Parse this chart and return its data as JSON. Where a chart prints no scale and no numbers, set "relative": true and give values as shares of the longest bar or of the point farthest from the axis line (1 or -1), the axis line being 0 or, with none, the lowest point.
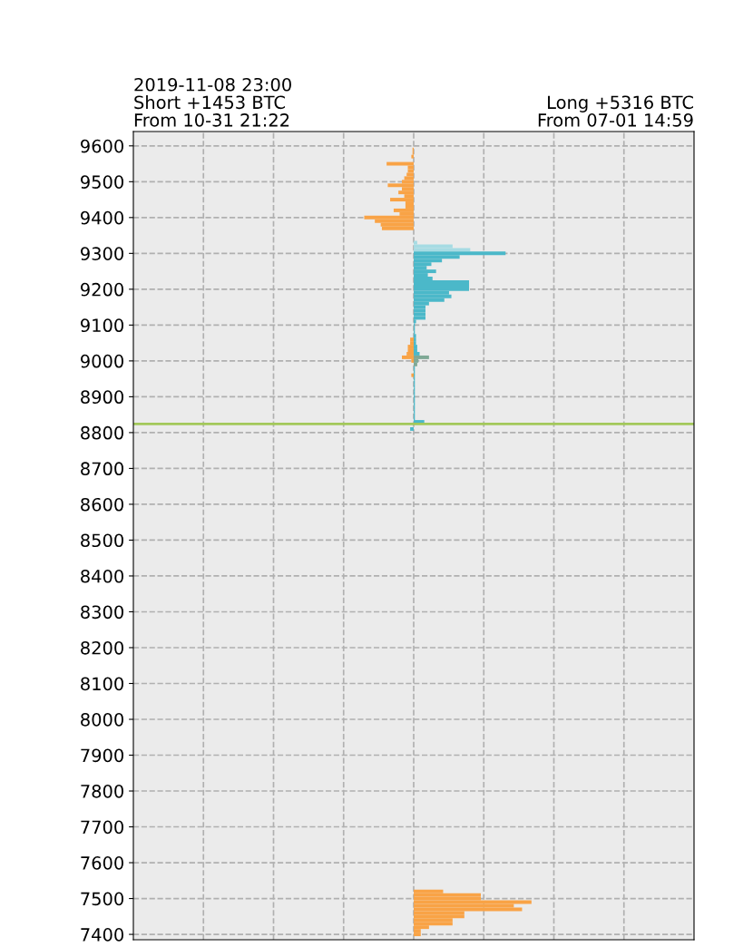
{
  "chart_data": {
    "type": "bar",
    "orientation": "horizontal",
    "relative": true,
    "title": "2019-11-08 23:00\nShort +1453 BTC\nFrom 10-31 21:22",
    "subtitle": "Long +5316 BTC\nFrom 07-01 14:59",
    "ylim": [
      7385,
      9640
    ],
    "yticks": [
      7400,
      7500,
      7600,
      7700,
      7800,
      7900,
      8000,
      8100,
      8200,
      8300,
      8400,
      8500,
      8600,
      8700,
      8800,
      8900,
      9000,
      9100,
      9200,
      9300,
      9400,
      9500,
      9600
    ],
    "tick_labels": "y",
    "grid": true,
    "line_style": "dashed",
    "series": [
      {
        "color": "#a6dbe3",
        "x": [
          9330,
          9320,
          9310
        ],
        "values": [
          0.03,
          0.33,
          0.48
        ]
      },
      {
        "color": "#4bb8c9",
        "x": [
          9300,
          9290,
          9280,
          9270,
          9260,
          9250,
          9240,
          9230,
          9220,
          9210,
          9200,
          9190,
          9180,
          9170,
          9160,
          9150,
          9140,
          9130,
          9120,
          9110,
          9100,
          9090,
          9080,
          9070,
          9060,
          9050,
          9040,
          9030,
          9020,
          8980,
          8970,
          8960,
          8950,
          8940,
          8930,
          8920,
          8910,
          8900,
          8890,
          8880,
          8870,
          8860,
          8850,
          8840,
          8830,
          8810
        ],
        "values": [
          0.78,
          0.39,
          0.24,
          0.15,
          0.11,
          0.19,
          0.12,
          0.16,
          0.47,
          0.47,
          0.47,
          0.3,
          0.32,
          0.26,
          0.13,
          0.1,
          0.1,
          0.1,
          0.1,
          0.02,
          0.01,
          0.01,
          0.01,
          0.02,
          0.02,
          0.02,
          0.03,
          0.03,
          0.05,
          0.01,
          0.01,
          0.01,
          0.01,
          0.01,
          0.01,
          0.01,
          0.01,
          0.01,
          0.01,
          0.01,
          0.01,
          0.01,
          0.01,
          0.01,
          0.09,
          -0.03
        ]
      },
      {
        "color": "#f9a346",
        "x": [
          9590,
          9580,
          9570,
          9550,
          9540,
          9530,
          9520,
          9510,
          9500,
          9490,
          9480,
          9470,
          9460,
          9450,
          9440,
          9430,
          9420,
          9410,
          9400,
          9390,
          9380,
          9370,
          9060,
          9050,
          9040,
          9030,
          9020,
          9010,
          9000,
          8960,
          7520,
          7510,
          7500,
          7490,
          7480,
          7470,
          7460,
          7450,
          7440,
          7430,
          7420,
          7410,
          7400
        ],
        "values": [
          -0.01,
          -0.01,
          -0.02,
          -0.23,
          -0.05,
          -0.05,
          -0.06,
          -0.08,
          -0.1,
          -0.22,
          -0.1,
          -0.13,
          -0.08,
          -0.2,
          -0.07,
          -0.07,
          -0.17,
          -0.12,
          -0.42,
          -0.33,
          -0.28,
          -0.27,
          -0.03,
          -0.03,
          -0.05,
          -0.05,
          -0.06,
          -0.1,
          -0.02,
          -0.02,
          0.25,
          0.57,
          0.57,
          1.0,
          0.85,
          0.92,
          0.43,
          0.43,
          0.33,
          0.33,
          0.13,
          0.06,
          0.06
        ]
      },
      {
        "color": "#7fa895",
        "x": [
          9010,
          9000,
          8990
        ],
        "values": [
          0.13,
          0.04,
          0.03
        ]
      }
    ],
    "ref_lines": [
      {
        "axis": "y",
        "value": 8824,
        "color": "#a3c85a"
      }
    ]
  }
}
